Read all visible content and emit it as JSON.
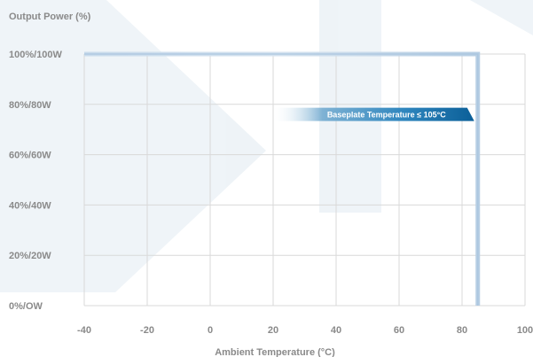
{
  "chart_data": {
    "type": "line",
    "ylabel": "Output Power (%)",
    "xlabel": "Ambient Temperature (°C)",
    "xlim": [
      -40,
      100
    ],
    "ylim": [
      0,
      100
    ],
    "x_ticks": [
      -40,
      -20,
      0,
      20,
      40,
      60,
      80,
      100
    ],
    "x_tick_labels": [
      "-40",
      "-20",
      "0",
      "20",
      "40",
      "60",
      "80",
      "100"
    ],
    "y_ticks": [
      0,
      20,
      40,
      60,
      80,
      100
    ],
    "y_tick_labels": [
      "0%/OW",
      "20%/20W",
      "40%/40W",
      "60%/60W",
      "80%/80W",
      "100%/100W"
    ],
    "grid": true,
    "series": [
      {
        "x": [
          -40,
          85,
          85
        ],
        "y": [
          100,
          100,
          0
        ]
      }
    ],
    "annotations": [
      {
        "text": "Baseplate Temperature ≤ 105°C",
        "y": 76
      }
    ],
    "colors": {
      "line": "#c2d6ea",
      "grid": "#d9d9d9",
      "label": "#8a8a8a",
      "annotation": "#0e6aa3"
    }
  }
}
